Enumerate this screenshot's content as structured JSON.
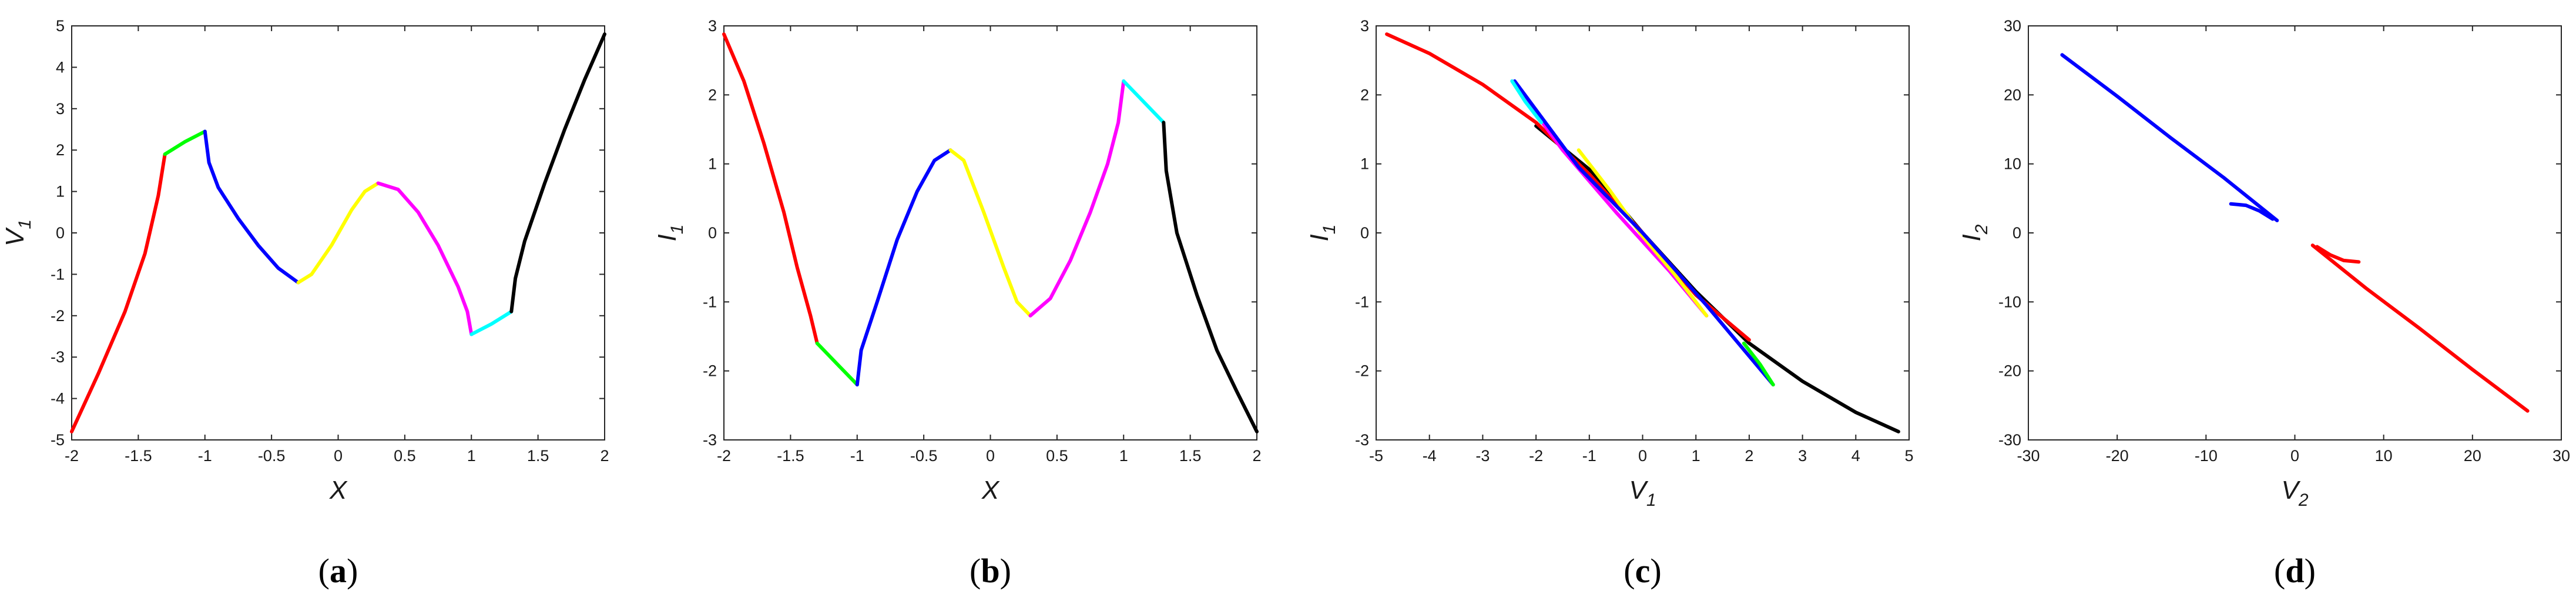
{
  "colors": {
    "red": "#ff0000",
    "green": "#00ff00",
    "blue": "#0000ff",
    "yellow": "#ffff00",
    "magenta": "#ff00ff",
    "cyan": "#00ffff",
    "black": "#000000"
  },
  "chart_data": [
    {
      "panel": "a",
      "type": "line",
      "xlabel": "X",
      "ylabel": "V",
      "ylabel_sub": "1",
      "xlim": [
        -2,
        2
      ],
      "ylim": [
        -5,
        5
      ],
      "xticks": [
        "-2",
        "-1.5",
        "-1",
        "-0.5",
        "0",
        "0.5",
        "1",
        "1.5",
        "2"
      ],
      "yticks": [
        "-5",
        "-4",
        "-3",
        "-2",
        "-1",
        "0",
        "1",
        "2",
        "3",
        "4",
        "5"
      ],
      "grid": false,
      "series": [
        {
          "color": "red",
          "points": [
            [
              -2,
              -4.8
            ],
            [
              -1.8,
              -3.4
            ],
            [
              -1.6,
              -1.9
            ],
            [
              -1.45,
              -0.5
            ],
            [
              -1.35,
              0.9
            ],
            [
              -1.3,
              1.9
            ]
          ]
        },
        {
          "color": "green",
          "points": [
            [
              -1.3,
              1.9
            ],
            [
              -1.15,
              2.2
            ],
            [
              -1.0,
              2.45
            ]
          ]
        },
        {
          "color": "blue",
          "points": [
            [
              -1.0,
              2.45
            ],
            [
              -0.97,
              1.7
            ],
            [
              -0.9,
              1.1
            ],
            [
              -0.75,
              0.35
            ],
            [
              -0.6,
              -0.3
            ],
            [
              -0.45,
              -0.85
            ],
            [
              -0.3,
              -1.2
            ]
          ]
        },
        {
          "color": "yellow",
          "points": [
            [
              -0.3,
              -1.2
            ],
            [
              -0.2,
              -1.0
            ],
            [
              -0.05,
              -0.3
            ],
            [
              0.1,
              0.55
            ],
            [
              0.2,
              1.0
            ],
            [
              0.3,
              1.2
            ]
          ]
        },
        {
          "color": "magenta",
          "points": [
            [
              0.3,
              1.2
            ],
            [
              0.45,
              1.05
            ],
            [
              0.6,
              0.5
            ],
            [
              0.75,
              -0.3
            ],
            [
              0.9,
              -1.3
            ],
            [
              0.97,
              -1.9
            ],
            [
              1.0,
              -2.45
            ]
          ]
        },
        {
          "color": "cyan",
          "points": [
            [
              1.0,
              -2.45
            ],
            [
              1.15,
              -2.2
            ],
            [
              1.3,
              -1.9
            ]
          ]
        },
        {
          "color": "black",
          "points": [
            [
              1.3,
              -1.9
            ],
            [
              1.33,
              -1.1
            ],
            [
              1.4,
              -0.2
            ],
            [
              1.55,
              1.2
            ],
            [
              1.7,
              2.5
            ],
            [
              1.85,
              3.7
            ],
            [
              2.0,
              4.8
            ]
          ]
        }
      ]
    },
    {
      "panel": "b",
      "type": "line",
      "xlabel": "X",
      "ylabel": "I",
      "ylabel_sub": "1",
      "xlim": [
        -2,
        2
      ],
      "ylim": [
        -3,
        3
      ],
      "xticks": [
        "-2",
        "-1.5",
        "-1",
        "-0.5",
        "0",
        "0.5",
        "1",
        "1.5",
        "2"
      ],
      "yticks": [
        "-3",
        "-2",
        "-1",
        "0",
        "1",
        "2",
        "3"
      ],
      "grid": false,
      "series": [
        {
          "color": "red",
          "points": [
            [
              -2,
              2.88
            ],
            [
              -1.85,
              2.2
            ],
            [
              -1.7,
              1.3
            ],
            [
              -1.55,
              0.3
            ],
            [
              -1.45,
              -0.5
            ],
            [
              -1.35,
              -1.2
            ],
            [
              -1.3,
              -1.6
            ]
          ]
        },
        {
          "color": "green",
          "points": [
            [
              -1.3,
              -1.6
            ],
            [
              -1.15,
              -1.9
            ],
            [
              -1.0,
              -2.2
            ]
          ]
        },
        {
          "color": "blue",
          "points": [
            [
              -1.0,
              -2.2
            ],
            [
              -0.97,
              -1.7
            ],
            [
              -0.85,
              -1.0
            ],
            [
              -0.7,
              -0.1
            ],
            [
              -0.55,
              0.6
            ],
            [
              -0.42,
              1.05
            ],
            [
              -0.3,
              1.2
            ]
          ]
        },
        {
          "color": "yellow",
          "points": [
            [
              -0.3,
              1.2
            ],
            [
              -0.2,
              1.05
            ],
            [
              -0.05,
              0.3
            ],
            [
              0.1,
              -0.5
            ],
            [
              0.2,
              -1.0
            ],
            [
              0.3,
              -1.2
            ]
          ]
        },
        {
          "color": "magenta",
          "points": [
            [
              0.3,
              -1.2
            ],
            [
              0.45,
              -0.95
            ],
            [
              0.6,
              -0.4
            ],
            [
              0.75,
              0.3
            ],
            [
              0.88,
              1.0
            ],
            [
              0.96,
              1.6
            ],
            [
              1.0,
              2.2
            ]
          ]
        },
        {
          "color": "cyan",
          "points": [
            [
              1.0,
              2.2
            ],
            [
              1.15,
              1.9
            ],
            [
              1.3,
              1.6
            ]
          ]
        },
        {
          "color": "black",
          "points": [
            [
              1.3,
              1.6
            ],
            [
              1.32,
              0.9
            ],
            [
              1.4,
              0.0
            ],
            [
              1.55,
              -0.9
            ],
            [
              1.7,
              -1.7
            ],
            [
              1.85,
              -2.3
            ],
            [
              2.0,
              -2.88
            ]
          ]
        }
      ]
    },
    {
      "panel": "c",
      "type": "line",
      "xlabel": "V",
      "xlabel_sub": "1",
      "ylabel": "I",
      "ylabel_sub": "1",
      "xlim": [
        -5,
        5
      ],
      "ylim": [
        -3,
        3
      ],
      "xticks": [
        "-5",
        "-4",
        "-3",
        "-2",
        "-1",
        "0",
        "1",
        "2",
        "3",
        "4",
        "5"
      ],
      "yticks": [
        "-3",
        "-2",
        "-1",
        "0",
        "1",
        "2",
        "3"
      ],
      "grid": false,
      "series": [
        {
          "color": "black",
          "points": [
            [
              -2.0,
              1.55
            ],
            [
              -1.0,
              0.92
            ],
            [
              0.0,
              0.0
            ],
            [
              1.0,
              -0.85
            ],
            [
              2.0,
              -1.6
            ],
            [
              3.0,
              -2.15
            ],
            [
              4.0,
              -2.6
            ],
            [
              4.8,
              -2.88
            ]
          ]
        },
        {
          "color": "red",
          "points": [
            [
              -4.8,
              2.88
            ],
            [
              -4.0,
              2.6
            ],
            [
              -3.0,
              2.15
            ],
            [
              -2.0,
              1.6
            ],
            [
              -1.0,
              0.85
            ],
            [
              0.0,
              0.0
            ],
            [
              1.0,
              -0.9
            ],
            [
              2.0,
              -1.55
            ]
          ]
        },
        {
          "color": "magenta",
          "points": [
            [
              -2.45,
              2.2
            ],
            [
              -1.5,
              1.2
            ],
            [
              -0.5,
              0.3
            ],
            [
              0.5,
              -0.55
            ],
            [
              1.2,
              -1.2
            ]
          ]
        },
        {
          "color": "yellow",
          "points": [
            [
              -1.2,
              1.2
            ],
            [
              -0.6,
              0.6
            ],
            [
              0.0,
              -0.05
            ],
            [
              0.6,
              -0.6
            ],
            [
              1.2,
              -1.2
            ]
          ]
        },
        {
          "color": "blue",
          "points": [
            [
              -2.4,
              2.2
            ],
            [
              -1.2,
              0.95
            ],
            [
              0.0,
              0.0
            ],
            [
              1.2,
              -1.05
            ],
            [
              2.45,
              -2.2
            ]
          ]
        },
        {
          "color": "cyan",
          "points": [
            [
              -2.45,
              2.2
            ],
            [
              -2.2,
              1.9
            ],
            [
              -1.9,
              1.6
            ]
          ]
        },
        {
          "color": "green",
          "points": [
            [
              1.9,
              -1.6
            ],
            [
              2.2,
              -1.9
            ],
            [
              2.45,
              -2.2
            ]
          ]
        }
      ]
    },
    {
      "panel": "d",
      "type": "line",
      "xlabel": "V",
      "xlabel_sub": "2",
      "ylabel": "I",
      "ylabel_sub": "2",
      "xlim": [
        -30,
        30
      ],
      "ylim": [
        -30,
        30
      ],
      "xticks": [
        "-30",
        "-20",
        "-10",
        "0",
        "10",
        "20",
        "30"
      ],
      "yticks": [
        "-30",
        "-20",
        "-10",
        "0",
        "10",
        "20",
        "30"
      ],
      "grid": false,
      "series": [
        {
          "color": "blue",
          "points": [
            [
              -26.2,
              25.8
            ],
            [
              -20,
              19.8
            ],
            [
              -14,
              13.8
            ],
            [
              -8,
              8
            ],
            [
              -2.0,
              1.8
            ]
          ]
        },
        {
          "color": "blue",
          "points": [
            [
              -7.2,
              4.2
            ],
            [
              -5.5,
              4.0
            ],
            [
              -4.0,
              3.2
            ],
            [
              -2.5,
              2.0
            ]
          ]
        },
        {
          "color": "red",
          "points": [
            [
              26.2,
              -25.8
            ],
            [
              20,
              -19.8
            ],
            [
              14,
              -13.8
            ],
            [
              8,
              -8
            ],
            [
              2.0,
              -1.8
            ]
          ]
        },
        {
          "color": "red",
          "points": [
            [
              2.5,
              -2.0
            ],
            [
              4.0,
              -3.2
            ],
            [
              5.5,
              -4.0
            ],
            [
              7.2,
              -4.2
            ]
          ]
        }
      ]
    }
  ]
}
